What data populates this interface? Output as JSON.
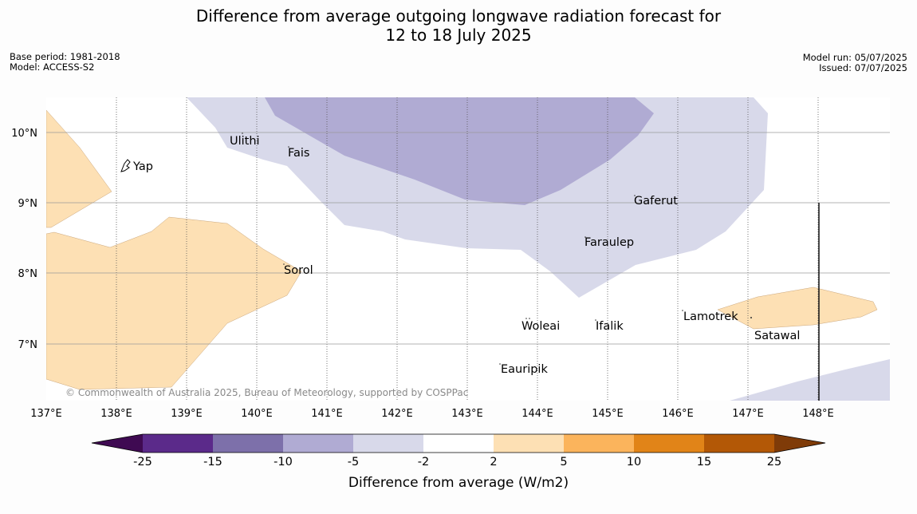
{
  "title": {
    "line1": "Difference from average outgoing longwave radiation forecast for",
    "line2": "12 to 18 July 2025"
  },
  "meta_left": {
    "base_period": "Base period: 1981-2018",
    "model": "Model: ACCESS-S2"
  },
  "meta_right": {
    "model_run": "Model run: 05/07/2025",
    "issued": "Issued: 07/07/2025"
  },
  "map": {
    "longitude_ticks": [
      "137°E",
      "138°E",
      "139°E",
      "140°E",
      "141°E",
      "142°E",
      "143°E",
      "144°E",
      "145°E",
      "146°E",
      "147°E",
      "148°E"
    ],
    "latitude_ticks": [
      "10°N",
      "9°N",
      "8°N",
      "7°N"
    ],
    "places": [
      {
        "name": "Yap"
      },
      {
        "name": "Ulithi"
      },
      {
        "name": "Fais"
      },
      {
        "name": "Gaferut"
      },
      {
        "name": "Faraulep"
      },
      {
        "name": "Sorol"
      },
      {
        "name": "Woleai"
      },
      {
        "name": "Ifalik"
      },
      {
        "name": "Lamotrek"
      },
      {
        "name": "Satawal"
      },
      {
        "name": "Eauripik"
      }
    ],
    "copyright": "© Commonwealth of Australia 2025, Bureau of Meteorology, supported by COSPPac"
  },
  "colorbar": {
    "ticks": [
      "-25",
      "-15",
      "-10",
      "-5",
      "-2",
      "2",
      "5",
      "10",
      "15",
      "25"
    ],
    "colors": {
      "below_-25": "#3f0a52",
      "-25_-15": "#5b2a8a",
      "-15_-10": "#7d70aa",
      "-10_-5": "#b0abd3",
      "-5_-2": "#d8d9ea",
      "-2_2": "#ffffff",
      "2_5": "#fde0b4",
      "5_10": "#fbb45c",
      "10_15": "#e18418",
      "15_25": "#b35806",
      "above_25": "#7f3b08"
    },
    "label": "Difference from average (W/m2)"
  }
}
